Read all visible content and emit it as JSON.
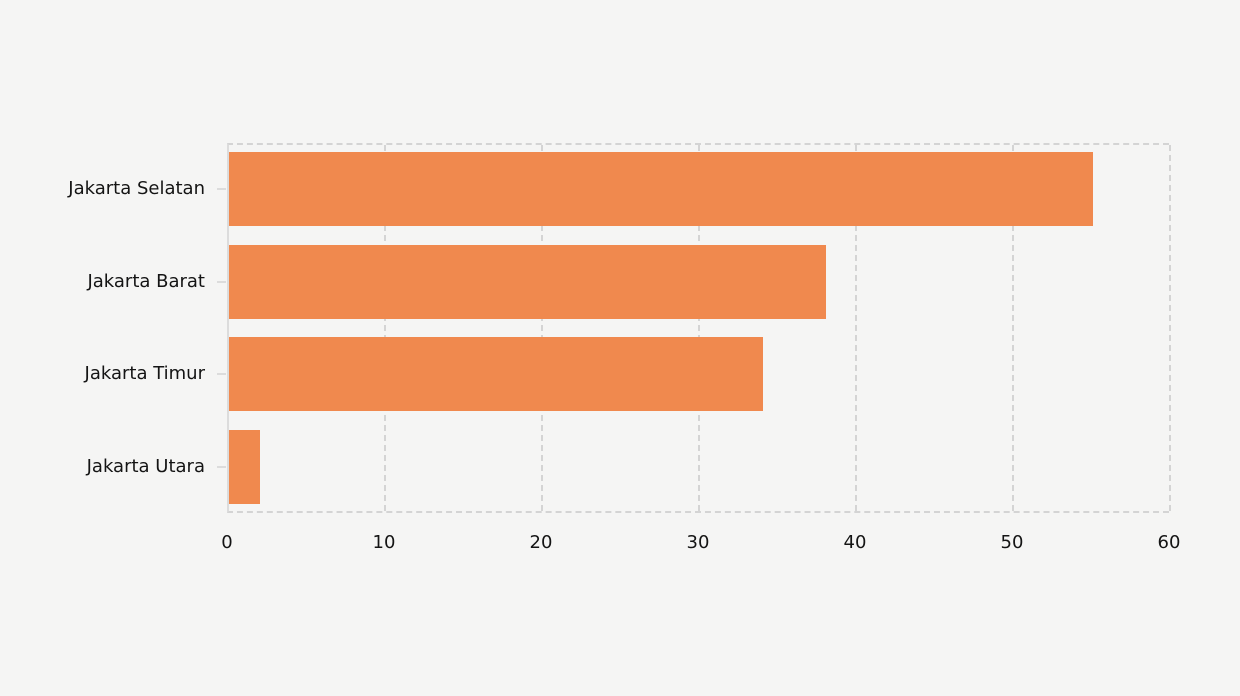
{
  "chart_data": {
    "type": "bar",
    "orientation": "horizontal",
    "title": "",
    "xlabel": "",
    "ylabel": "",
    "categories": [
      "Jakarta Selatan",
      "Jakarta Barat",
      "Jakarta Timur",
      "Jakarta Utara"
    ],
    "values": [
      55,
      38,
      34,
      2
    ],
    "x_ticks": [
      0,
      10,
      20,
      30,
      40,
      50,
      60
    ],
    "xlim": [
      0,
      60
    ],
    "grid": "vertical-dashed",
    "legend": "none",
    "colors": {
      "bar": "#F0894E",
      "background": "#F5F5F4",
      "grid": "#D4D4D4",
      "axis": "#DCDCDC",
      "text": "#141414"
    }
  }
}
